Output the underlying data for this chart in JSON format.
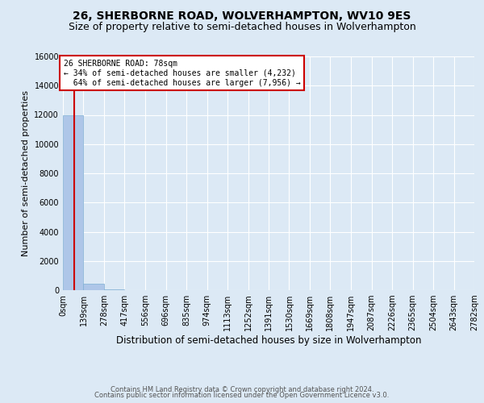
{
  "title_line1": "26, SHERBORNE ROAD, WOLVERHAMPTON, WV10 9ES",
  "title_line2": "Size of property relative to semi-detached houses in Wolverhampton",
  "xlabel": "Distribution of semi-detached houses by size in Wolverhampton",
  "ylabel": "Number of semi-detached properties",
  "footer_line1": "Contains HM Land Registry data © Crown copyright and database right 2024.",
  "footer_line2": "Contains public sector information licensed under the Open Government Licence v3.0.",
  "bin_edges": [
    0,
    139,
    278,
    417,
    556,
    696,
    835,
    974,
    1113,
    1252,
    1391,
    1530,
    1669,
    1808,
    1947,
    2087,
    2226,
    2365,
    2504,
    2643,
    2782
  ],
  "bin_labels": [
    "0sqm",
    "139sqm",
    "278sqm",
    "417sqm",
    "556sqm",
    "696sqm",
    "835sqm",
    "974sqm",
    "1113sqm",
    "1252sqm",
    "1391sqm",
    "1530sqm",
    "1669sqm",
    "1808sqm",
    "1947sqm",
    "2087sqm",
    "2226sqm",
    "2365sqm",
    "2504sqm",
    "2643sqm",
    "2782sqm"
  ],
  "bar_heights": [
    12000,
    420,
    30,
    10,
    5,
    3,
    2,
    2,
    1,
    1,
    1,
    1,
    1,
    0,
    0,
    0,
    0,
    0,
    0,
    0
  ],
  "bar_color": "#aec6e8",
  "bar_edgecolor": "#7fafd4",
  "property_size_sqm": 78,
  "annotation_text_line1": "26 SHERBORNE ROAD: 78sqm",
  "annotation_text_line2": "← 34% of semi-detached houses are smaller (4,232)",
  "annotation_text_line3": "  64% of semi-detached houses are larger (7,956) →",
  "red_line_color": "#cc0000",
  "annotation_box_edgecolor": "#cc0000",
  "annotation_box_facecolor": "#ffffff",
  "ylim": [
    0,
    16000
  ],
  "bg_color": "#dce9f5",
  "plot_bg_color": "#dce9f5",
  "grid_color": "#ffffff",
  "title_fontsize": 10,
  "subtitle_fontsize": 9,
  "ylabel_fontsize": 8,
  "xlabel_fontsize": 8.5,
  "tick_fontsize": 7,
  "annotation_fontsize": 7,
  "footer_fontsize": 6
}
